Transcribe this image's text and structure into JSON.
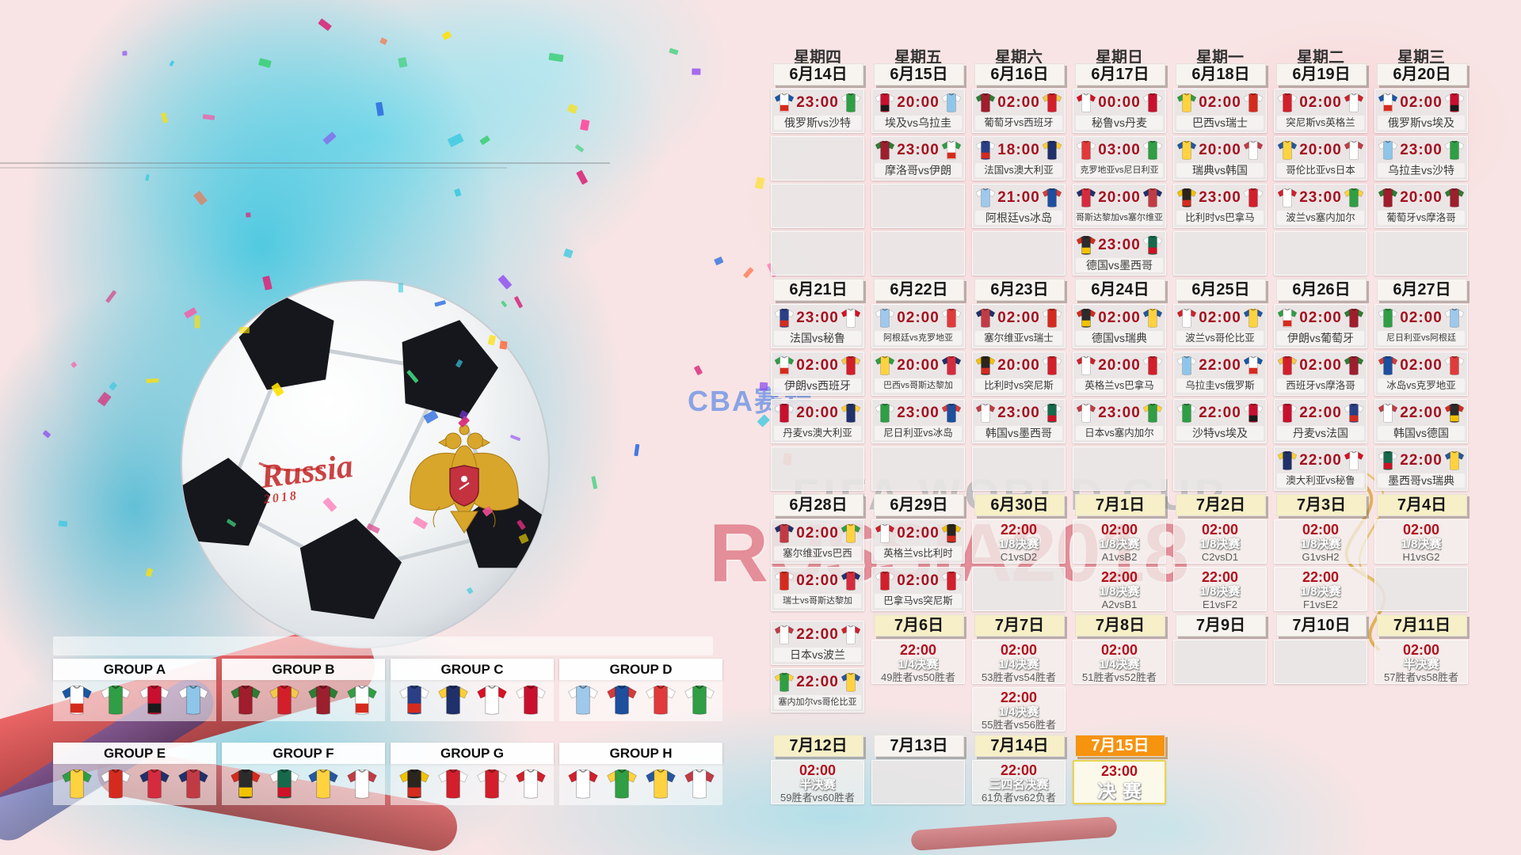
{
  "watermarks": {
    "cba": "CBA赛程",
    "fifa": "FIFA WORLD CUP",
    "russia": "RUSSIA2018"
  },
  "ball": {
    "script": "Russia",
    "script_sub": "2018"
  },
  "weekdays": [
    "星期四",
    "星期五",
    "星期六",
    "星期日",
    "星期一",
    "星期二",
    "星期三"
  ],
  "colors": {
    "time_red": "#a3111f",
    "date_white": "#f7f4f0",
    "date_yellow": "#f6efc7",
    "date_orange": "#f6930f",
    "splash_cyan": "#3ec6e0",
    "watermark_blue": "#2d6ee6",
    "watermark_red": "#cd3046",
    "crest_gold": "#d9a62c"
  },
  "calendar": {
    "dates": [
      [
        1,
        "d1",
        "6月14日",
        "white"
      ],
      [
        2,
        "d1",
        "6月15日",
        "white"
      ],
      [
        3,
        "d1",
        "6月16日",
        "white"
      ],
      [
        4,
        "d1",
        "6月17日",
        "white"
      ],
      [
        5,
        "d1",
        "6月18日",
        "white"
      ],
      [
        6,
        "d1",
        "6月19日",
        "white"
      ],
      [
        7,
        "d1",
        "6月20日",
        "white"
      ],
      [
        1,
        "d2",
        "6月21日",
        "white"
      ],
      [
        2,
        "d2",
        "6月22日",
        "white"
      ],
      [
        3,
        "d2",
        "6月23日",
        "white"
      ],
      [
        4,
        "d2",
        "6月24日",
        "white"
      ],
      [
        5,
        "d2",
        "6月25日",
        "white"
      ],
      [
        6,
        "d2",
        "6月26日",
        "white"
      ],
      [
        7,
        "d2",
        "6月27日",
        "white"
      ],
      [
        1,
        "d3",
        "6月28日",
        "white"
      ],
      [
        2,
        "d3",
        "6月29日",
        "white"
      ],
      [
        3,
        "d3",
        "6月30日",
        "yellow"
      ],
      [
        4,
        "d3",
        "7月1日",
        "yellow"
      ],
      [
        5,
        "d3",
        "7月2日",
        "yellow"
      ],
      [
        6,
        "d3",
        "7月3日",
        "yellow"
      ],
      [
        7,
        "d3",
        "7月4日",
        "yellow"
      ],
      [
        2,
        "d4",
        "7月6日",
        "yellow"
      ],
      [
        3,
        "d4",
        "7月7日",
        "yellow"
      ],
      [
        4,
        "d4",
        "7月8日",
        "yellow"
      ],
      [
        5,
        "d4",
        "7月9日",
        "white"
      ],
      [
        6,
        "d4",
        "7月10日",
        "white"
      ],
      [
        7,
        "d4",
        "7月11日",
        "yellow"
      ],
      [
        1,
        "d5",
        "7月12日",
        "yellow"
      ],
      [
        2,
        "d5",
        "7月13日",
        "white"
      ],
      [
        3,
        "d5",
        "7月14日",
        "yellow"
      ],
      [
        4,
        "d5",
        "7月15日",
        "orange"
      ]
    ],
    "matches": [
      [
        1,
        "r1",
        "23:00",
        "俄罗斯",
        "沙特"
      ],
      [
        2,
        "r1",
        "20:00",
        "埃及",
        "乌拉圭"
      ],
      [
        2,
        "r2",
        "23:00",
        "摩洛哥",
        "伊朗"
      ],
      [
        3,
        "r1",
        "02:00",
        "葡萄牙",
        "西班牙"
      ],
      [
        3,
        "r2",
        "18:00",
        "法国",
        "澳大利亚"
      ],
      [
        3,
        "r3",
        "21:00",
        "阿根廷",
        "冰岛"
      ],
      [
        4,
        "r1",
        "00:00",
        "秘鲁",
        "丹麦"
      ],
      [
        4,
        "r2",
        "03:00",
        "克罗地亚",
        "尼日利亚"
      ],
      [
        4,
        "r3",
        "20:00",
        "哥斯达黎加",
        "塞尔维亚"
      ],
      [
        4,
        "r4",
        "23:00",
        "德国",
        "墨西哥"
      ],
      [
        5,
        "r1",
        "02:00",
        "巴西",
        "瑞士"
      ],
      [
        5,
        "r2",
        "20:00",
        "瑞典",
        "韩国"
      ],
      [
        5,
        "r3",
        "23:00",
        "比利时",
        "巴拿马"
      ],
      [
        6,
        "r1",
        "02:00",
        "突尼斯",
        "英格兰"
      ],
      [
        6,
        "r2",
        "20:00",
        "哥伦比亚",
        "日本"
      ],
      [
        6,
        "r3",
        "23:00",
        "波兰",
        "塞内加尔"
      ],
      [
        7,
        "r1",
        "02:00",
        "俄罗斯",
        "埃及"
      ],
      [
        7,
        "r2",
        "23:00",
        "乌拉圭",
        "沙特"
      ],
      [
        7,
        "r3",
        "20:00",
        "葡萄牙",
        "摩洛哥"
      ],
      [
        1,
        "r5",
        "23:00",
        "法国",
        "秘鲁"
      ],
      [
        1,
        "r6",
        "02:00",
        "伊朗",
        "西班牙"
      ],
      [
        1,
        "r7",
        "20:00",
        "丹麦",
        "澳大利亚"
      ],
      [
        2,
        "r5",
        "02:00",
        "阿根廷",
        "克罗地亚"
      ],
      [
        2,
        "r6",
        "20:00",
        "巴西",
        "哥斯达黎加"
      ],
      [
        2,
        "r7",
        "23:00",
        "尼日利亚",
        "冰岛"
      ],
      [
        3,
        "r5",
        "02:00",
        "塞尔维亚",
        "瑞士"
      ],
      [
        3,
        "r6",
        "20:00",
        "比利时",
        "突尼斯"
      ],
      [
        3,
        "r7",
        "23:00",
        "韩国",
        "墨西哥"
      ],
      [
        4,
        "r5",
        "02:00",
        "德国",
        "瑞典"
      ],
      [
        4,
        "r6",
        "20:00",
        "英格兰",
        "巴拿马"
      ],
      [
        4,
        "r7",
        "23:00",
        "日本",
        "塞内加尔"
      ],
      [
        5,
        "r5",
        "02:00",
        "波兰",
        "哥伦比亚"
      ],
      [
        5,
        "r6",
        "22:00",
        "乌拉圭",
        "俄罗斯"
      ],
      [
        5,
        "r7",
        "22:00",
        "沙特",
        "埃及"
      ],
      [
        6,
        "r5",
        "02:00",
        "伊朗",
        "葡萄牙"
      ],
      [
        6,
        "r6",
        "02:00",
        "西班牙",
        "摩洛哥"
      ],
      [
        6,
        "r7",
        "22:00",
        "丹麦",
        "法国"
      ],
      [
        6,
        "r8",
        "22:00",
        "澳大利亚",
        "秘鲁"
      ],
      [
        7,
        "r5",
        "02:00",
        "尼日利亚",
        "阿根廷"
      ],
      [
        7,
        "r6",
        "02:00",
        "冰岛",
        "克罗地亚"
      ],
      [
        7,
        "r7",
        "22:00",
        "韩国",
        "德国"
      ],
      [
        7,
        "r8",
        "22:00",
        "墨西哥",
        "瑞典"
      ],
      [
        1,
        "r9",
        "02:00",
        "塞尔维亚",
        "巴西"
      ],
      [
        1,
        "r10",
        "02:00",
        "瑞士",
        "哥斯达黎加"
      ],
      [
        1,
        "c1a",
        "22:00",
        "日本",
        "波兰"
      ],
      [
        1,
        "c1b",
        "22:00",
        "塞内加尔",
        "哥伦比亚"
      ],
      [
        2,
        "r9",
        "02:00",
        "英格兰",
        "比利时"
      ],
      [
        2,
        "r10",
        "02:00",
        "巴拿马",
        "突尼斯"
      ]
    ],
    "knockouts": [
      [
        3,
        "r9",
        "22:00",
        "1/8决赛",
        "C1vsD2"
      ],
      [
        4,
        "r9",
        "02:00",
        "1/8决赛",
        "A1vsB2"
      ],
      [
        4,
        "r10",
        "22:00",
        "1/8决赛",
        "A2vsB1"
      ],
      [
        5,
        "r9",
        "02:00",
        "1/8决赛",
        "C2vsD1"
      ],
      [
        5,
        "r10",
        "22:00",
        "1/8决赛",
        "E1vsF2"
      ],
      [
        6,
        "r9",
        "02:00",
        "1/8决赛",
        "G1vsH2"
      ],
      [
        6,
        "r10",
        "22:00",
        "1/8决赛",
        "F1vsE2"
      ],
      [
        7,
        "r9",
        "02:00",
        "1/8决赛",
        "H1vsG2"
      ],
      [
        2,
        "r11",
        "22:00",
        "1/4决赛",
        "49胜者vs50胜者"
      ],
      [
        3,
        "r11",
        "02:00",
        "1/4决赛",
        "53胜者vs54胜者"
      ],
      [
        3,
        "r12",
        "22:00",
        "1/4决赛",
        "55胜者vs56胜者"
      ],
      [
        4,
        "r11",
        "02:00",
        "1/4决赛",
        "51胜者vs52胜者"
      ],
      [
        7,
        "r11",
        "02:00",
        "半决赛",
        "57胜者vs58胜者"
      ],
      [
        1,
        "r13",
        "02:00",
        "半决赛",
        "59胜者vs60胜者"
      ],
      [
        3,
        "r13",
        "22:00",
        "三四名决赛",
        "61负者vs62负者"
      ],
      [
        4,
        "r13",
        "23:00",
        "决赛",
        ""
      ]
    ],
    "empties": [
      [
        1,
        "r2"
      ],
      [
        1,
        "r3"
      ],
      [
        1,
        "r4"
      ],
      [
        2,
        "r3"
      ],
      [
        2,
        "r4"
      ],
      [
        3,
        "r4"
      ],
      [
        5,
        "r4"
      ],
      [
        6,
        "r4"
      ],
      [
        7,
        "r4"
      ],
      [
        1,
        "r8"
      ],
      [
        2,
        "r8"
      ],
      [
        3,
        "r8"
      ],
      [
        4,
        "r8"
      ],
      [
        5,
        "r8"
      ],
      [
        3,
        "r10"
      ],
      [
        7,
        "r10"
      ],
      [
        5,
        "r11"
      ],
      [
        6,
        "r11"
      ],
      [
        2,
        "r13"
      ]
    ]
  },
  "groups": [
    {
      "name": "GROUP A",
      "teams": [
        "俄罗斯",
        "沙特",
        "埃及",
        "乌拉圭"
      ]
    },
    {
      "name": "GROUP B",
      "teams": [
        "葡萄牙",
        "西班牙",
        "摩洛哥",
        "伊朗"
      ]
    },
    {
      "name": "GROUP C",
      "teams": [
        "法国",
        "澳大利亚",
        "秘鲁",
        "丹麦"
      ]
    },
    {
      "name": "GROUP D",
      "teams": [
        "阿根廷",
        "冰岛",
        "克罗地亚",
        "尼日利亚"
      ]
    },
    {
      "name": "GROUP E",
      "teams": [
        "巴西",
        "瑞士",
        "哥斯达黎加",
        "塞尔维亚"
      ]
    },
    {
      "name": "GROUP F",
      "teams": [
        "德国",
        "墨西哥",
        "瑞典",
        "韩国"
      ]
    },
    {
      "name": "GROUP G",
      "teams": [
        "比利时",
        "巴拿马",
        "突尼斯",
        "英格兰"
      ]
    },
    {
      "name": "GROUP H",
      "teams": [
        "波兰",
        "塞内加尔",
        "哥伦比亚",
        "日本"
      ]
    }
  ],
  "team_colors": {
    "俄罗斯": [
      "#ffffff",
      "#1857a4",
      "#d52b1e"
    ],
    "沙特": [
      "#2f9e44",
      "#ffffff"
    ],
    "埃及": [
      "#c8102e",
      "#ffffff",
      "#1a1a1a"
    ],
    "乌拉圭": [
      "#8ec6ea",
      "#ffffff"
    ],
    "葡萄牙": [
      "#9f1d2c",
      "#2e7d32"
    ],
    "西班牙": [
      "#d21f2b",
      "#f2c94c"
    ],
    "摩洛哥": [
      "#9c1f2e",
      "#2e7d32"
    ],
    "伊朗": [
      "#ffffff",
      "#2f9e44",
      "#d52b1e"
    ],
    "法国": [
      "#2b3f86",
      "#ffffff",
      "#d52b1e"
    ],
    "澳大利亚": [
      "#20306b",
      "#ffcf33"
    ],
    "秘鲁": [
      "#ffffff",
      "#d91023"
    ],
    "丹麦": [
      "#c8102e",
      "#ffffff"
    ],
    "阿根廷": [
      "#9ec9ec",
      "#ffffff"
    ],
    "冰岛": [
      "#1d4f9e",
      "#d33b3b"
    ],
    "克罗地亚": [
      "#e03a3a",
      "#ffffff"
    ],
    "尼日利亚": [
      "#2f9e44",
      "#ffffff"
    ],
    "巴西": [
      "#ffd23f",
      "#2f9e44"
    ],
    "瑞士": [
      "#d52b1e",
      "#ffffff"
    ],
    "哥斯达黎加": [
      "#d52b3e",
      "#20306b"
    ],
    "塞尔维亚": [
      "#c23b44",
      "#20306b"
    ],
    "德国": [
      "#2b2b2b",
      "#d52b1e",
      "#f2c200"
    ],
    "墨西哥": [
      "#17694c",
      "#ffffff",
      "#ce1126"
    ],
    "瑞典": [
      "#ffd23f",
      "#2457a0"
    ],
    "韩国": [
      "#ffffff",
      "#c23b44"
    ],
    "比利时": [
      "#2b2520",
      "#f2c200",
      "#d52b1e"
    ],
    "巴拿马": [
      "#d21f2b",
      "#ffffff"
    ],
    "突尼斯": [
      "#d21f2b",
      "#ffffff"
    ],
    "英格兰": [
      "#ffffff",
      "#d21f2b"
    ],
    "波兰": [
      "#ffffff",
      "#d21f2b"
    ],
    "塞内加尔": [
      "#2f9e44",
      "#ffd23f"
    ],
    "哥伦比亚": [
      "#ffd23f",
      "#2457a0"
    ],
    "日本": [
      "#ffffff",
      "#c23b44"
    ]
  }
}
